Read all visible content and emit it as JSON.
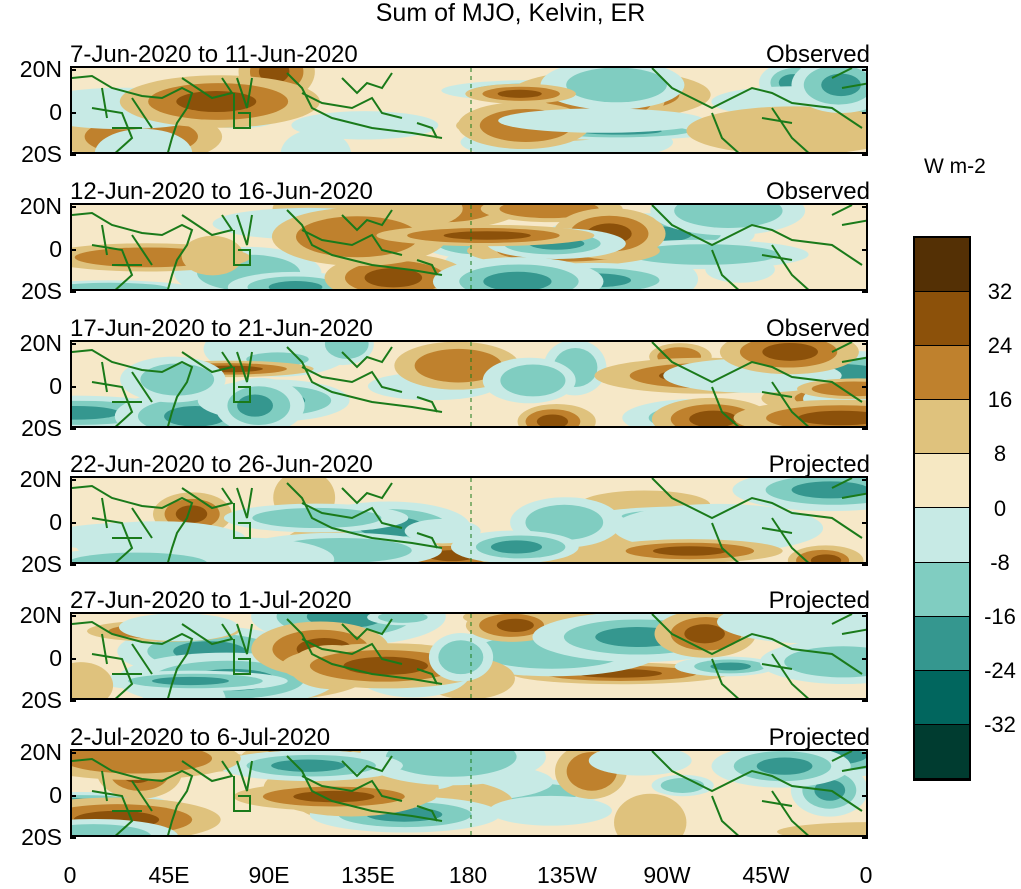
{
  "title": "Sum of MJO, Kelvin, ER",
  "panels": [
    {
      "date_range": "7-Jun-2020 to 11-Jun-2020",
      "status": "Observed",
      "ylabels": [
        "20N",
        "0",
        "20S"
      ]
    },
    {
      "date_range": "12-Jun-2020 to 16-Jun-2020",
      "status": "Observed",
      "ylabels": [
        "20N",
        "0",
        "20S"
      ]
    },
    {
      "date_range": "17-Jun-2020 to 21-Jun-2020",
      "status": "Observed",
      "ylabels": [
        "20N",
        "0",
        "20S"
      ]
    },
    {
      "date_range": "22-Jun-2020 to 26-Jun-2020",
      "status": "Projected",
      "ylabels": [
        "20N",
        "0",
        "20S"
      ]
    },
    {
      "date_range": "27-Jun-2020 to 1-Jul-2020",
      "status": "Projected",
      "ylabels": [
        "20N",
        "0",
        "20S"
      ]
    },
    {
      "date_range": "2-Jul-2020 to 6-Jul-2020",
      "status": "Projected",
      "ylabels": [
        "20N",
        "0",
        "20S"
      ]
    }
  ],
  "xaxis": {
    "labels": [
      "0",
      "45E",
      "90E",
      "135E",
      "180",
      "135W",
      "90W",
      "45W",
      "0"
    ]
  },
  "colorbar": {
    "units": "W m-2",
    "labels": [
      "32",
      "24",
      "16",
      "8",
      "0",
      "-8",
      "-16",
      "-24",
      "-32"
    ],
    "colors": [
      "#543005",
      "#8c510a",
      "#bf812d",
      "#dfc27d",
      "#f6e8c3",
      "#c7eae5",
      "#80cdc1",
      "#35978f",
      "#01665e",
      "#003c30"
    ]
  },
  "colors": {
    "coastline": "#1a7a1a",
    "background": "#f6e8c3"
  }
}
